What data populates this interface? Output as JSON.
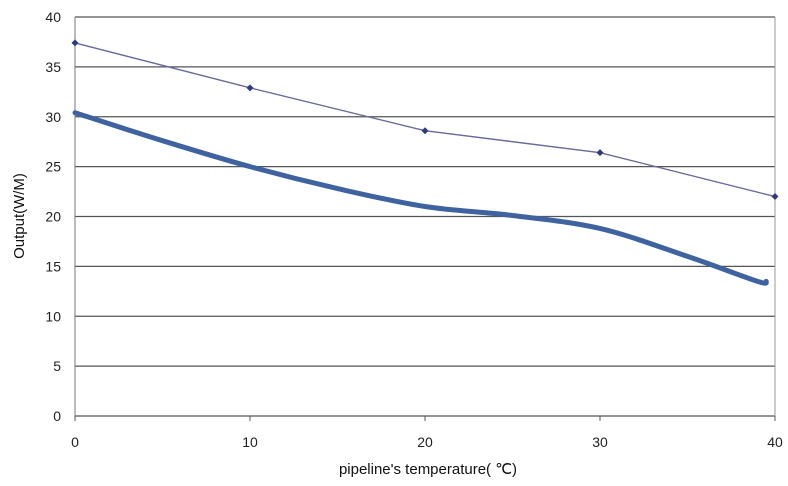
{
  "chart_data": {
    "type": "line",
    "title": "",
    "xlabel": "pipeline's temperature(  ℃)",
    "ylabel": "Output(W/M)",
    "xlim": [
      0,
      40
    ],
    "ylim": [
      0,
      40
    ],
    "xticks": [
      "0",
      "10",
      "20",
      "30",
      "40"
    ],
    "yticks": [
      "0",
      "5",
      "10",
      "15",
      "20",
      "25",
      "30",
      "35",
      "40"
    ],
    "grid": "horizontal",
    "legend": "none",
    "series": [
      {
        "color": "#2E3D7A",
        "style": "thin line with diamond markers",
        "x": [
          0,
          10,
          20,
          30,
          40
        ],
        "y": [
          37.4,
          32.9,
          28.6,
          26.4,
          22.0
        ]
      },
      {
        "color": "#3F63A0",
        "style": "thick smooth line",
        "x": [
          0,
          5,
          10,
          15,
          20,
          25,
          30,
          35,
          39,
          39.5
        ],
        "y": [
          30.4,
          27.6,
          25.0,
          22.8,
          21.0,
          20.1,
          18.8,
          16.0,
          13.5,
          13.5
        ]
      }
    ]
  }
}
